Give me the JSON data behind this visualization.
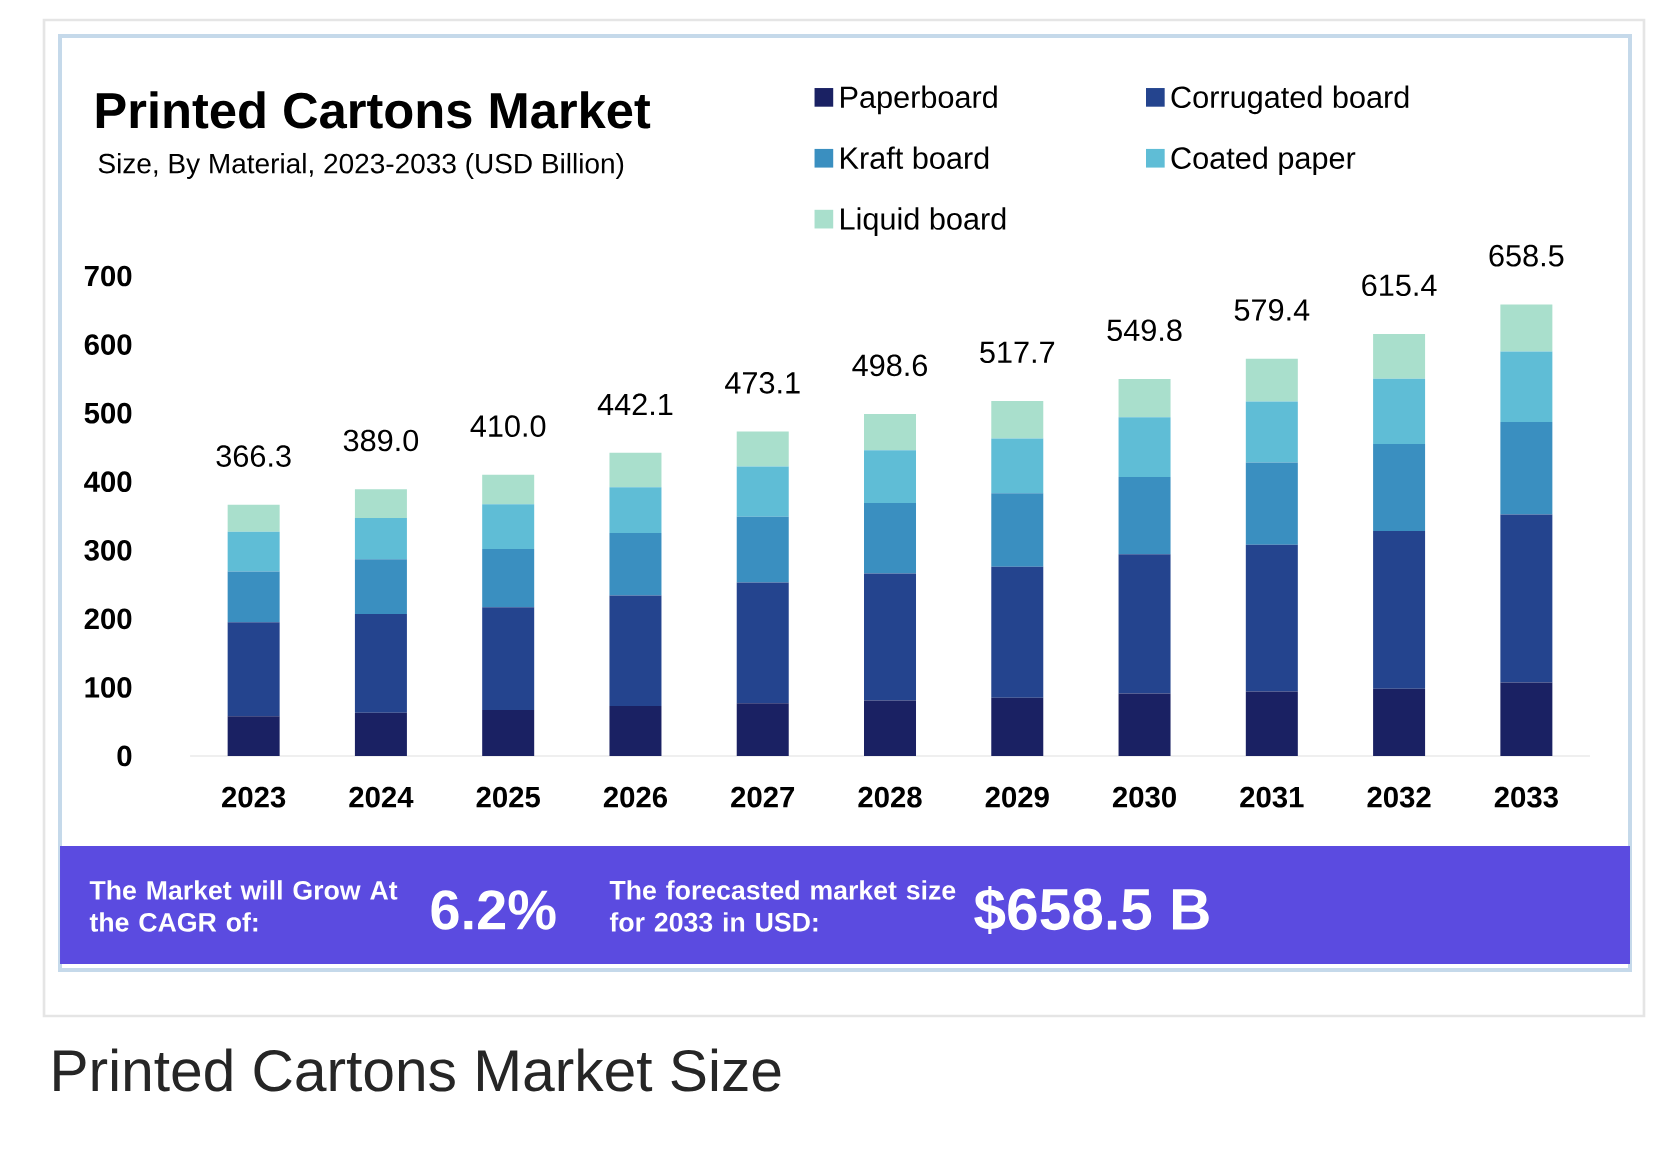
{
  "chart_data": {
    "type": "bar",
    "stacked": true,
    "title": "Printed Cartons Market",
    "subtitle": "Size, By Material, 2023-2033 (USD Billion)",
    "categories": [
      "2023",
      "2024",
      "2025",
      "2026",
      "2027",
      "2028",
      "2029",
      "2030",
      "2031",
      "2032",
      "2033"
    ],
    "series": [
      {
        "name": "Paperboard",
        "color": "#1a2163",
        "values": [
          58,
          63,
          67,
          73,
          77,
          81,
          85,
          91,
          94,
          98,
          107
        ]
      },
      {
        "name": "Corrugated board",
        "color": "#24448e",
        "values": [
          137,
          144,
          150,
          161,
          176,
          185,
          191,
          203,
          214,
          230,
          245
        ]
      },
      {
        "name": "Kraft board",
        "color": "#3a8fc0",
        "values": [
          74,
          80,
          85,
          91,
          96,
          103,
          107,
          113,
          120,
          127,
          135
        ]
      },
      {
        "name": "Coated paper",
        "color": "#5fbdd6",
        "values": [
          58,
          60,
          65,
          67,
          73,
          77,
          80,
          87,
          89,
          95,
          103
        ]
      },
      {
        "name": "Liquid board",
        "color": "#a9dfcc",
        "values": [
          39.3,
          42.0,
          43.0,
          50.1,
          51.1,
          52.6,
          54.7,
          55.8,
          62.4,
          65.4,
          68.5
        ]
      }
    ],
    "totals": [
      "366.3",
      "389.0",
      "410.0",
      "442.1",
      "473.1",
      "498.6",
      "517.7",
      "549.8",
      "579.4",
      "615.4",
      "658.5"
    ],
    "ylim": [
      0,
      700
    ],
    "yticks": [
      0,
      100,
      200,
      300,
      400,
      500,
      600,
      700
    ],
    "legend": "top right",
    "annotations": [
      "The Market will Grow At the CAGR of:",
      "6.2%",
      "The forecasted market size for 2033 in USD:",
      "$658.5 B",
      "Printed Cartons Market Size"
    ]
  }
}
